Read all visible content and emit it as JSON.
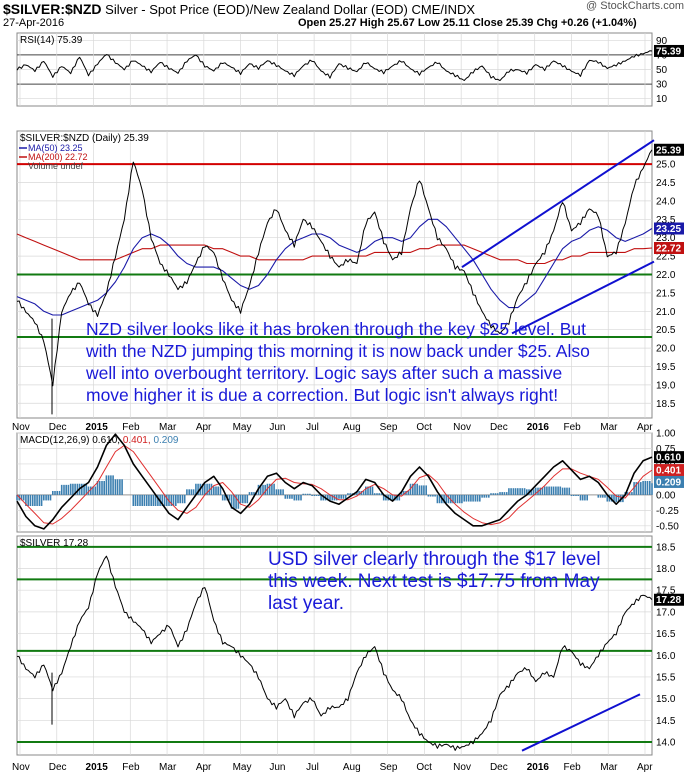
{
  "header": {
    "symbol": "$SILVER:$NZD",
    "description": "Silver - Spot Price (EOD)/New Zealand Dollar (EOD)",
    "exchange": "CME/INDX",
    "date": "27-Apr-2016",
    "ohlc": "Open 25.27  High 25.67  Low 25.11  Close 25.39  Chg +0.26 (+1.04%)",
    "credit": "@ StockCharts.com"
  },
  "colors": {
    "price_line": "#000000",
    "ma50": "#1a1aa8",
    "ma200": "#c01010",
    "h_green": "#117a11",
    "h_red": "#d20000",
    "channel": "#1010d0",
    "annotation": "#1a1ad8",
    "macd_hist": "#3b7fb0",
    "grid": "#d8d8d8"
  },
  "chart_data": [
    {
      "type": "line",
      "name": "RSI",
      "legend": "RSI(14) 75.39",
      "yticks": [
        "90",
        "70",
        "50",
        "30",
        "10"
      ],
      "ylim": [
        10,
        90
      ],
      "last_label": "75.39",
      "y": [
        50,
        57,
        48,
        62,
        40,
        55,
        45,
        68,
        42,
        58,
        71,
        60,
        50,
        63,
        55,
        47,
        60,
        52,
        45,
        62,
        70,
        55,
        48,
        60,
        53,
        45,
        58,
        52,
        62,
        56,
        48,
        42,
        55,
        63,
        48,
        40,
        58,
        52,
        47,
        60,
        51,
        46,
        55,
        62,
        51,
        44,
        53,
        60,
        48,
        42,
        35,
        47,
        55,
        40,
        35,
        48,
        50,
        45,
        57,
        50,
        62,
        55,
        48,
        42,
        63,
        60,
        52,
        56,
        62,
        68,
        72,
        75.39
      ]
    },
    {
      "type": "line",
      "name": "$SILVER:$NZD",
      "legend": "$SILVER:$NZD (Daily) 25.39",
      "legend_ma50": "MA(50) 23.25",
      "legend_ma200": "MA(200) 22.72",
      "legend_vol": "Volume undef",
      "ylim": [
        18.1,
        25.9
      ],
      "yticks": [
        "25.0",
        "24.5",
        "24.0",
        "23.5",
        "23.0",
        "22.5",
        "22.0",
        "21.5",
        "21.0",
        "20.5",
        "20.0",
        "19.5",
        "19.0",
        "18.5"
      ],
      "last_labels": [
        "25.39",
        "23.25",
        "22.72"
      ],
      "x_labels": [
        "Nov",
        "Dec",
        "2015",
        "Feb",
        "Mar",
        "Apr",
        "May",
        "Jun",
        "Jul",
        "Aug",
        "Sep",
        "Oct",
        "Nov",
        "Dec",
        "2016",
        "Feb",
        "Mar",
        "Apr"
      ],
      "price": [
        21.3,
        21.0,
        20.7,
        20.2,
        19.0,
        21.0,
        21.5,
        21.8,
        21.2,
        20.9,
        21.5,
        22.5,
        23.5,
        25.1,
        24.3,
        23.0,
        22.3,
        22.0,
        21.6,
        21.8,
        22.3,
        22.8,
        22.6,
        21.9,
        21.3,
        21.0,
        21.7,
        22.6,
        23.4,
        23.8,
        23.2,
        22.8,
        23.5,
        23.3,
        22.9,
        22.5,
        22.2,
        22.4,
        22.3,
        23.4,
        23.7,
        22.9,
        22.4,
        22.6,
        23.8,
        24.6,
        23.8,
        23.0,
        22.7,
        22.2,
        22.1,
        21.5,
        21.0,
        20.6,
        20.4,
        20.7,
        21.4,
        21.8,
        22.3,
        22.6,
        23.2,
        24.0,
        23.2,
        23.4,
        23.8,
        23.6,
        22.5,
        22.6,
        23.4,
        24.4,
        24.9,
        25.39
      ],
      "ma50": [
        21.4,
        21.3,
        21.2,
        21.0,
        20.9,
        20.9,
        21.0,
        21.1,
        21.2,
        21.3,
        21.5,
        21.8,
        22.2,
        22.7,
        23.0,
        23.1,
        23.0,
        22.8,
        22.5,
        22.3,
        22.2,
        22.2,
        22.2,
        22.1,
        21.9,
        21.7,
        21.6,
        21.7,
        22.0,
        22.4,
        22.7,
        22.9,
        23.0,
        23.1,
        23.1,
        23.0,
        22.8,
        22.7,
        22.6,
        22.7,
        22.9,
        23.0,
        23.0,
        22.9,
        23.0,
        23.3,
        23.5,
        23.5,
        23.3,
        23.0,
        22.7,
        22.4,
        22.0,
        21.6,
        21.3,
        21.1,
        21.1,
        21.3,
        21.5,
        21.9,
        22.3,
        22.7,
        22.9,
        23.0,
        23.2,
        23.3,
        23.2,
        23.0,
        22.9,
        23.0,
        23.1,
        23.25
      ],
      "ma200": [
        23.1,
        23.0,
        22.9,
        22.8,
        22.7,
        22.6,
        22.5,
        22.4,
        22.4,
        22.4,
        22.4,
        22.4,
        22.5,
        22.6,
        22.7,
        22.7,
        22.8,
        22.8,
        22.8,
        22.8,
        22.8,
        22.8,
        22.7,
        22.7,
        22.6,
        22.5,
        22.5,
        22.4,
        22.4,
        22.4,
        22.4,
        22.4,
        22.4,
        22.5,
        22.5,
        22.5,
        22.5,
        22.5,
        22.5,
        22.5,
        22.6,
        22.6,
        22.6,
        22.6,
        22.6,
        22.7,
        22.7,
        22.8,
        22.8,
        22.8,
        22.8,
        22.7,
        22.6,
        22.5,
        22.4,
        22.4,
        22.4,
        22.3,
        22.3,
        22.3,
        22.4,
        22.4,
        22.5,
        22.5,
        22.6,
        22.6,
        22.6,
        22.6,
        22.6,
        22.7,
        22.7,
        22.72
      ],
      "levels_green": [
        22.0,
        20.3
      ],
      "levels_red": [
        25.0
      ],
      "annotation": "NZD silver looks like it has broken through the key $25 level. But with the NZD jumping this morning it is now back under $25. Also well into overbought territory. Logic says after such a massive move higher it is due a correction. But logic isn't always right!"
    },
    {
      "type": "line",
      "name": "MACD",
      "legend_prefix": "MACD(12,26,9)",
      "legend_macd": "0.610",
      "legend_signal": "0.401",
      "legend_hist": "0.209",
      "ylim": [
        -0.6,
        1.0
      ],
      "yticks": [
        "1.00",
        "0.75",
        "0.50",
        "0.25",
        "0.00",
        "-0.25",
        "-0.50"
      ],
      "last_labels": [
        "0.610",
        "0.401",
        "0.209"
      ],
      "macd": [
        -0.1,
        -0.35,
        -0.5,
        -0.55,
        -0.4,
        -0.2,
        -0.05,
        0.1,
        0.2,
        0.45,
        0.8,
        0.98,
        0.8,
        0.5,
        0.3,
        0.1,
        -0.1,
        -0.3,
        -0.4,
        -0.2,
        0.0,
        0.2,
        0.3,
        0.1,
        -0.2,
        -0.3,
        -0.15,
        0.1,
        0.3,
        0.35,
        0.2,
        0.1,
        0.2,
        0.15,
        0.0,
        -0.1,
        -0.15,
        -0.05,
        0.05,
        0.25,
        0.2,
        0.0,
        -0.1,
        0.05,
        0.3,
        0.45,
        0.3,
        0.05,
        -0.15,
        -0.3,
        -0.4,
        -0.5,
        -0.5,
        -0.45,
        -0.4,
        -0.25,
        -0.1,
        0.0,
        0.15,
        0.3,
        0.45,
        0.55,
        0.4,
        0.25,
        0.3,
        0.2,
        0.0,
        -0.15,
        0.0,
        0.35,
        0.55,
        0.61
      ],
      "signal": [
        0.0,
        -0.15,
        -0.3,
        -0.45,
        -0.47,
        -0.38,
        -0.25,
        -0.1,
        0.05,
        0.2,
        0.45,
        0.7,
        0.8,
        0.7,
        0.5,
        0.3,
        0.1,
        -0.1,
        -0.25,
        -0.3,
        -0.2,
        0.0,
        0.15,
        0.2,
        0.05,
        -0.15,
        -0.2,
        -0.08,
        0.1,
        0.25,
        0.27,
        0.2,
        0.18,
        0.17,
        0.1,
        0.0,
        -0.08,
        -0.08,
        -0.02,
        0.1,
        0.17,
        0.1,
        0.0,
        -0.02,
        0.1,
        0.28,
        0.33,
        0.2,
        0.0,
        -0.15,
        -0.28,
        -0.38,
        -0.45,
        -0.48,
        -0.45,
        -0.37,
        -0.22,
        -0.1,
        0.02,
        0.15,
        0.3,
        0.42,
        0.42,
        0.35,
        0.3,
        0.25,
        0.12,
        -0.02,
        -0.05,
        0.12,
        0.3,
        0.401
      ]
    },
    {
      "type": "line",
      "name": "$SILVER",
      "legend": "$SILVER 17.28",
      "ylim": [
        13.7,
        18.75
      ],
      "yticks": [
        "18.5",
        "18.0",
        "17.5",
        "17.0",
        "16.5",
        "16.0",
        "15.5",
        "15.0",
        "14.5",
        "14.0"
      ],
      "last_label": "17.28",
      "x_labels": [
        "Nov",
        "Dec",
        "2015",
        "Feb",
        "Mar",
        "Apr",
        "May",
        "Jun",
        "Jul",
        "Aug",
        "Sep",
        "Oct",
        "Nov",
        "Dec",
        "2016",
        "Feb",
        "Mar",
        "Apr"
      ],
      "price": [
        16.0,
        15.7,
        15.5,
        15.8,
        15.2,
        15.6,
        16.2,
        16.8,
        17.1,
        17.9,
        18.3,
        17.6,
        17.0,
        16.8,
        16.6,
        16.3,
        16.5,
        16.7,
        16.2,
        16.6,
        17.2,
        17.6,
        16.8,
        16.3,
        16.2,
        16.0,
        15.8,
        15.5,
        15.0,
        14.8,
        15.0,
        14.6,
        14.9,
        15.0,
        14.6,
        14.8,
        14.8,
        15.0,
        15.6,
        16.0,
        16.2,
        15.6,
        15.2,
        15.0,
        14.5,
        14.2,
        14.0,
        13.9,
        13.95,
        13.85,
        13.9,
        14.0,
        14.2,
        14.5,
        15.1,
        15.3,
        15.6,
        15.7,
        15.4,
        15.6,
        15.5,
        16.2,
        16.1,
        15.8,
        15.7,
        16.0,
        16.3,
        16.5,
        17.0,
        17.2,
        17.4,
        17.28
      ],
      "levels_green": [
        18.5,
        17.75,
        16.1,
        14.0
      ],
      "annotation": "USD silver clearly through the $17 level this week. Next test is $17.75 from May last year."
    }
  ]
}
